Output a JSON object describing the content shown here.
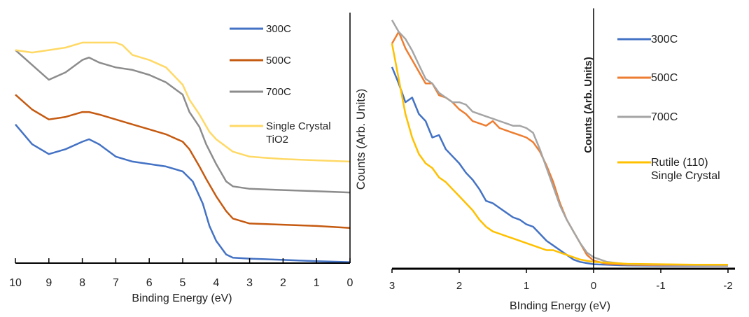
{
  "chart_data": [
    {
      "type": "line",
      "title": "",
      "xlabel": "Binding Energy (eV)",
      "ylabel": "Counts (Arb. Units)",
      "xlim": [
        10,
        0
      ],
      "x_reversed": true,
      "x_ticks": [
        "10",
        "9",
        "8",
        "7",
        "6",
        "5",
        "4",
        "3",
        "2",
        "1",
        "0"
      ],
      "y_ticks_shown": false,
      "legend_position": "top-right",
      "series": [
        {
          "name": "300C",
          "color": "#4472C4",
          "points": [
            [
              10.0,
              0.56
            ],
            [
              9.5,
              0.48
            ],
            [
              9.0,
              0.44
            ],
            [
              8.5,
              0.46
            ],
            [
              8.0,
              0.49
            ],
            [
              7.8,
              0.5
            ],
            [
              7.5,
              0.48
            ],
            [
              7.0,
              0.43
            ],
            [
              6.5,
              0.41
            ],
            [
              6.0,
              0.4
            ],
            [
              5.5,
              0.39
            ],
            [
              5.0,
              0.37
            ],
            [
              4.7,
              0.33
            ],
            [
              4.4,
              0.24
            ],
            [
              4.2,
              0.15
            ],
            [
              4.0,
              0.09
            ],
            [
              3.7,
              0.035
            ],
            [
              3.5,
              0.022
            ],
            [
              3.0,
              0.018
            ],
            [
              2.0,
              0.013
            ],
            [
              1.0,
              0.008
            ],
            [
              0.0,
              0.004
            ]
          ]
        },
        {
          "name": "500C",
          "color": "#C55A11",
          "points": [
            [
              10.0,
              0.68
            ],
            [
              9.5,
              0.62
            ],
            [
              9.0,
              0.58
            ],
            [
              8.5,
              0.59
            ],
            [
              8.0,
              0.61
            ],
            [
              7.8,
              0.61
            ],
            [
              7.5,
              0.6
            ],
            [
              7.0,
              0.58
            ],
            [
              6.5,
              0.56
            ],
            [
              6.0,
              0.54
            ],
            [
              5.5,
              0.52
            ],
            [
              5.0,
              0.49
            ],
            [
              4.8,
              0.46
            ],
            [
              4.5,
              0.39
            ],
            [
              4.3,
              0.34
            ],
            [
              4.0,
              0.27
            ],
            [
              3.7,
              0.21
            ],
            [
              3.5,
              0.18
            ],
            [
              3.0,
              0.16
            ],
            [
              2.0,
              0.155
            ],
            [
              1.0,
              0.15
            ],
            [
              0.0,
              0.142
            ]
          ]
        },
        {
          "name": "700C",
          "color": "#8C8C8C",
          "points": [
            [
              10.0,
              0.86
            ],
            [
              9.5,
              0.8
            ],
            [
              9.0,
              0.74
            ],
            [
              8.5,
              0.77
            ],
            [
              8.0,
              0.82
            ],
            [
              7.8,
              0.83
            ],
            [
              7.5,
              0.81
            ],
            [
              7.0,
              0.79
            ],
            [
              6.5,
              0.78
            ],
            [
              6.0,
              0.76
            ],
            [
              5.5,
              0.73
            ],
            [
              5.0,
              0.68
            ],
            [
              4.8,
              0.61
            ],
            [
              4.5,
              0.55
            ],
            [
              4.3,
              0.48
            ],
            [
              4.0,
              0.4
            ],
            [
              3.7,
              0.33
            ],
            [
              3.5,
              0.31
            ],
            [
              3.0,
              0.3
            ],
            [
              2.0,
              0.295
            ],
            [
              1.0,
              0.29
            ],
            [
              0.0,
              0.285
            ]
          ]
        },
        {
          "name": "Single Crystal TiO2",
          "color": "#FFD966",
          "points": [
            [
              10.0,
              0.86
            ],
            [
              9.5,
              0.85
            ],
            [
              9.0,
              0.86
            ],
            [
              8.5,
              0.87
            ],
            [
              8.0,
              0.89
            ],
            [
              7.5,
              0.89
            ],
            [
              7.0,
              0.89
            ],
            [
              6.8,
              0.88
            ],
            [
              6.5,
              0.84
            ],
            [
              6.0,
              0.82
            ],
            [
              5.5,
              0.79
            ],
            [
              5.0,
              0.72
            ],
            [
              4.8,
              0.66
            ],
            [
              4.5,
              0.6
            ],
            [
              4.2,
              0.53
            ],
            [
              4.0,
              0.5
            ],
            [
              3.5,
              0.45
            ],
            [
              3.0,
              0.43
            ],
            [
              2.5,
              0.425
            ],
            [
              2.0,
              0.42
            ],
            [
              1.0,
              0.415
            ],
            [
              0.0,
              0.41
            ]
          ]
        }
      ]
    },
    {
      "type": "line",
      "title": "",
      "xlabel": "BInding Energy (eV)",
      "ylabel": "Counts (Arb. Units)",
      "xlim": [
        3,
        -2
      ],
      "x_reversed": true,
      "x_ticks": [
        "3",
        "2",
        "1",
        "0",
        "-1",
        "-2"
      ],
      "y_ticks_shown": false,
      "legend_position": "right",
      "series": [
        {
          "name": "300C",
          "color": "#4472C4",
          "points": [
            [
              3.0,
              0.85
            ],
            [
              2.9,
              0.78
            ],
            [
              2.8,
              0.7
            ],
            [
              2.7,
              0.72
            ],
            [
              2.6,
              0.65
            ],
            [
              2.5,
              0.62
            ],
            [
              2.4,
              0.55
            ],
            [
              2.3,
              0.56
            ],
            [
              2.2,
              0.5
            ],
            [
              2.1,
              0.47
            ],
            [
              2.0,
              0.44
            ],
            [
              1.9,
              0.4
            ],
            [
              1.8,
              0.37
            ],
            [
              1.7,
              0.33
            ],
            [
              1.6,
              0.28
            ],
            [
              1.5,
              0.27
            ],
            [
              1.4,
              0.25
            ],
            [
              1.3,
              0.23
            ],
            [
              1.2,
              0.21
            ],
            [
              1.1,
              0.2
            ],
            [
              1.0,
              0.18
            ],
            [
              0.9,
              0.17
            ],
            [
              0.8,
              0.14
            ],
            [
              0.7,
              0.11
            ],
            [
              0.6,
              0.09
            ],
            [
              0.5,
              0.07
            ],
            [
              0.4,
              0.05
            ],
            [
              0.3,
              0.03
            ],
            [
              0.2,
              0.02
            ],
            [
              0.1,
              0.015
            ],
            [
              0.0,
              0.01
            ],
            [
              -0.5,
              0.005
            ],
            [
              -1.0,
              0.004
            ],
            [
              -1.5,
              0.004
            ],
            [
              -2.0,
              0.004
            ]
          ]
        },
        {
          "name": "500C",
          "color": "#ED7D31",
          "points": [
            [
              3.0,
              0.95
            ],
            [
              2.9,
              1.0
            ],
            [
              2.8,
              0.93
            ],
            [
              2.7,
              0.88
            ],
            [
              2.6,
              0.83
            ],
            [
              2.5,
              0.78
            ],
            [
              2.4,
              0.78
            ],
            [
              2.3,
              0.73
            ],
            [
              2.2,
              0.72
            ],
            [
              2.1,
              0.7
            ],
            [
              2.0,
              0.67
            ],
            [
              1.9,
              0.65
            ],
            [
              1.8,
              0.62
            ],
            [
              1.7,
              0.61
            ],
            [
              1.6,
              0.6
            ],
            [
              1.5,
              0.62
            ],
            [
              1.4,
              0.59
            ],
            [
              1.3,
              0.58
            ],
            [
              1.2,
              0.57
            ],
            [
              1.1,
              0.56
            ],
            [
              1.0,
              0.55
            ],
            [
              0.9,
              0.53
            ],
            [
              0.8,
              0.49
            ],
            [
              0.7,
              0.43
            ],
            [
              0.6,
              0.36
            ],
            [
              0.5,
              0.27
            ],
            [
              0.4,
              0.2
            ],
            [
              0.3,
              0.15
            ],
            [
              0.2,
              0.1
            ],
            [
              0.1,
              0.05
            ],
            [
              0.0,
              0.025
            ],
            [
              -0.2,
              0.012
            ],
            [
              -0.5,
              0.008
            ],
            [
              -1.0,
              0.006
            ],
            [
              -1.5,
              0.006
            ],
            [
              -2.0,
              0.005
            ]
          ]
        },
        {
          "name": "700C",
          "color": "#A5A5A5",
          "points": [
            [
              3.0,
              1.05
            ],
            [
              2.9,
              1.0
            ],
            [
              2.8,
              0.97
            ],
            [
              2.7,
              0.92
            ],
            [
              2.6,
              0.86
            ],
            [
              2.5,
              0.8
            ],
            [
              2.4,
              0.78
            ],
            [
              2.3,
              0.74
            ],
            [
              2.2,
              0.72
            ],
            [
              2.1,
              0.7
            ],
            [
              2.0,
              0.7
            ],
            [
              1.9,
              0.69
            ],
            [
              1.8,
              0.66
            ],
            [
              1.7,
              0.65
            ],
            [
              1.6,
              0.64
            ],
            [
              1.5,
              0.63
            ],
            [
              1.4,
              0.62
            ],
            [
              1.3,
              0.61
            ],
            [
              1.2,
              0.6
            ],
            [
              1.1,
              0.6
            ],
            [
              1.0,
              0.59
            ],
            [
              0.9,
              0.57
            ],
            [
              0.8,
              0.5
            ],
            [
              0.7,
              0.42
            ],
            [
              0.6,
              0.34
            ],
            [
              0.5,
              0.26
            ],
            [
              0.4,
              0.2
            ],
            [
              0.3,
              0.15
            ],
            [
              0.2,
              0.1
            ],
            [
              0.1,
              0.06
            ],
            [
              0.0,
              0.04
            ],
            [
              -0.2,
              0.02
            ],
            [
              -0.5,
              0.01
            ],
            [
              -1.0,
              0.008
            ],
            [
              -1.5,
              0.007
            ],
            [
              -2.0,
              0.006
            ]
          ]
        },
        {
          "name": "Rutile (110) Single Crystal",
          "color": "#FFC000",
          "points": [
            [
              3.0,
              0.95
            ],
            [
              2.9,
              0.8
            ],
            [
              2.8,
              0.65
            ],
            [
              2.7,
              0.55
            ],
            [
              2.6,
              0.48
            ],
            [
              2.5,
              0.44
            ],
            [
              2.4,
              0.42
            ],
            [
              2.3,
              0.38
            ],
            [
              2.2,
              0.36
            ],
            [
              2.1,
              0.33
            ],
            [
              2.0,
              0.3
            ],
            [
              1.9,
              0.27
            ],
            [
              1.8,
              0.24
            ],
            [
              1.7,
              0.2
            ],
            [
              1.6,
              0.17
            ],
            [
              1.5,
              0.15
            ],
            [
              1.4,
              0.14
            ],
            [
              1.3,
              0.13
            ],
            [
              1.2,
              0.12
            ],
            [
              1.1,
              0.11
            ],
            [
              1.0,
              0.1
            ],
            [
              0.9,
              0.09
            ],
            [
              0.8,
              0.08
            ],
            [
              0.7,
              0.07
            ],
            [
              0.6,
              0.07
            ],
            [
              0.5,
              0.06
            ],
            [
              0.4,
              0.05
            ],
            [
              0.3,
              0.04
            ],
            [
              0.2,
              0.03
            ],
            [
              0.1,
              0.025
            ],
            [
              0.0,
              0.02
            ],
            [
              -0.5,
              0.012
            ],
            [
              -1.0,
              0.01
            ],
            [
              -1.5,
              0.008
            ],
            [
              -2.0,
              0.008
            ]
          ]
        }
      ]
    }
  ]
}
